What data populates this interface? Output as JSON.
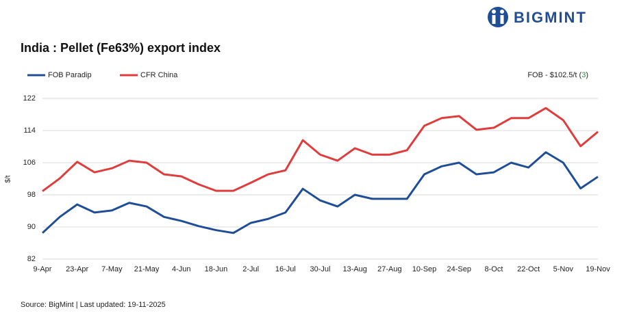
{
  "brand": "BIGMINT",
  "chart_data": {
    "type": "line",
    "title": "India : Pellet (Fe63%) export index",
    "ylabel": "$/t",
    "annotation": {
      "prefix": "FOB - $102.5/t (",
      "change": "3",
      "suffix": ")",
      "change_color": "#2e8b3a"
    },
    "source": "Source: BigMint | Last updated: 19-11-2025",
    "categories": [
      "9-Apr",
      null,
      "23-Apr",
      null,
      "7-May",
      null,
      "21-May",
      null,
      "4-Jun",
      null,
      "18-Jun",
      null,
      "2-Jul",
      null,
      "16-Jul",
      null,
      "30-Jul",
      null,
      "13-Aug",
      null,
      "27-Aug",
      null,
      "10-Sep",
      null,
      "24-Sep",
      null,
      "8-Oct",
      null,
      "22-Oct",
      null,
      "5-Nov",
      null,
      "19-Nov"
    ],
    "series": [
      {
        "name": "FOB Paradip",
        "color": "#1f4e96",
        "values": [
          88.5,
          92.5,
          95.6,
          93.6,
          94.1,
          96,
          95.1,
          92.5,
          91.5,
          90.2,
          89.2,
          88.5,
          91,
          92,
          93.6,
          99.5,
          96.6,
          95.1,
          98,
          97,
          97,
          97,
          103.1,
          105.1,
          106,
          103.1,
          103.6,
          106,
          104.8,
          108.6,
          106,
          99.6,
          102.5
        ]
      },
      {
        "name": "CFR China",
        "color": "#e03c3c",
        "values": [
          98.9,
          102.1,
          106.2,
          103.6,
          104.6,
          106.5,
          106,
          103.1,
          102.6,
          100.6,
          99,
          99,
          101,
          103.1,
          104.1,
          111.6,
          108,
          106.5,
          109.6,
          108,
          108,
          109.1,
          115.2,
          117.1,
          117.6,
          114.2,
          114.7,
          117.1,
          117.1,
          119.6,
          116.6,
          110.1,
          113.7
        ]
      }
    ],
    "ylim": [
      82,
      122
    ],
    "yticks": [
      82,
      90,
      98,
      106,
      114,
      122
    ],
    "grid": true
  }
}
